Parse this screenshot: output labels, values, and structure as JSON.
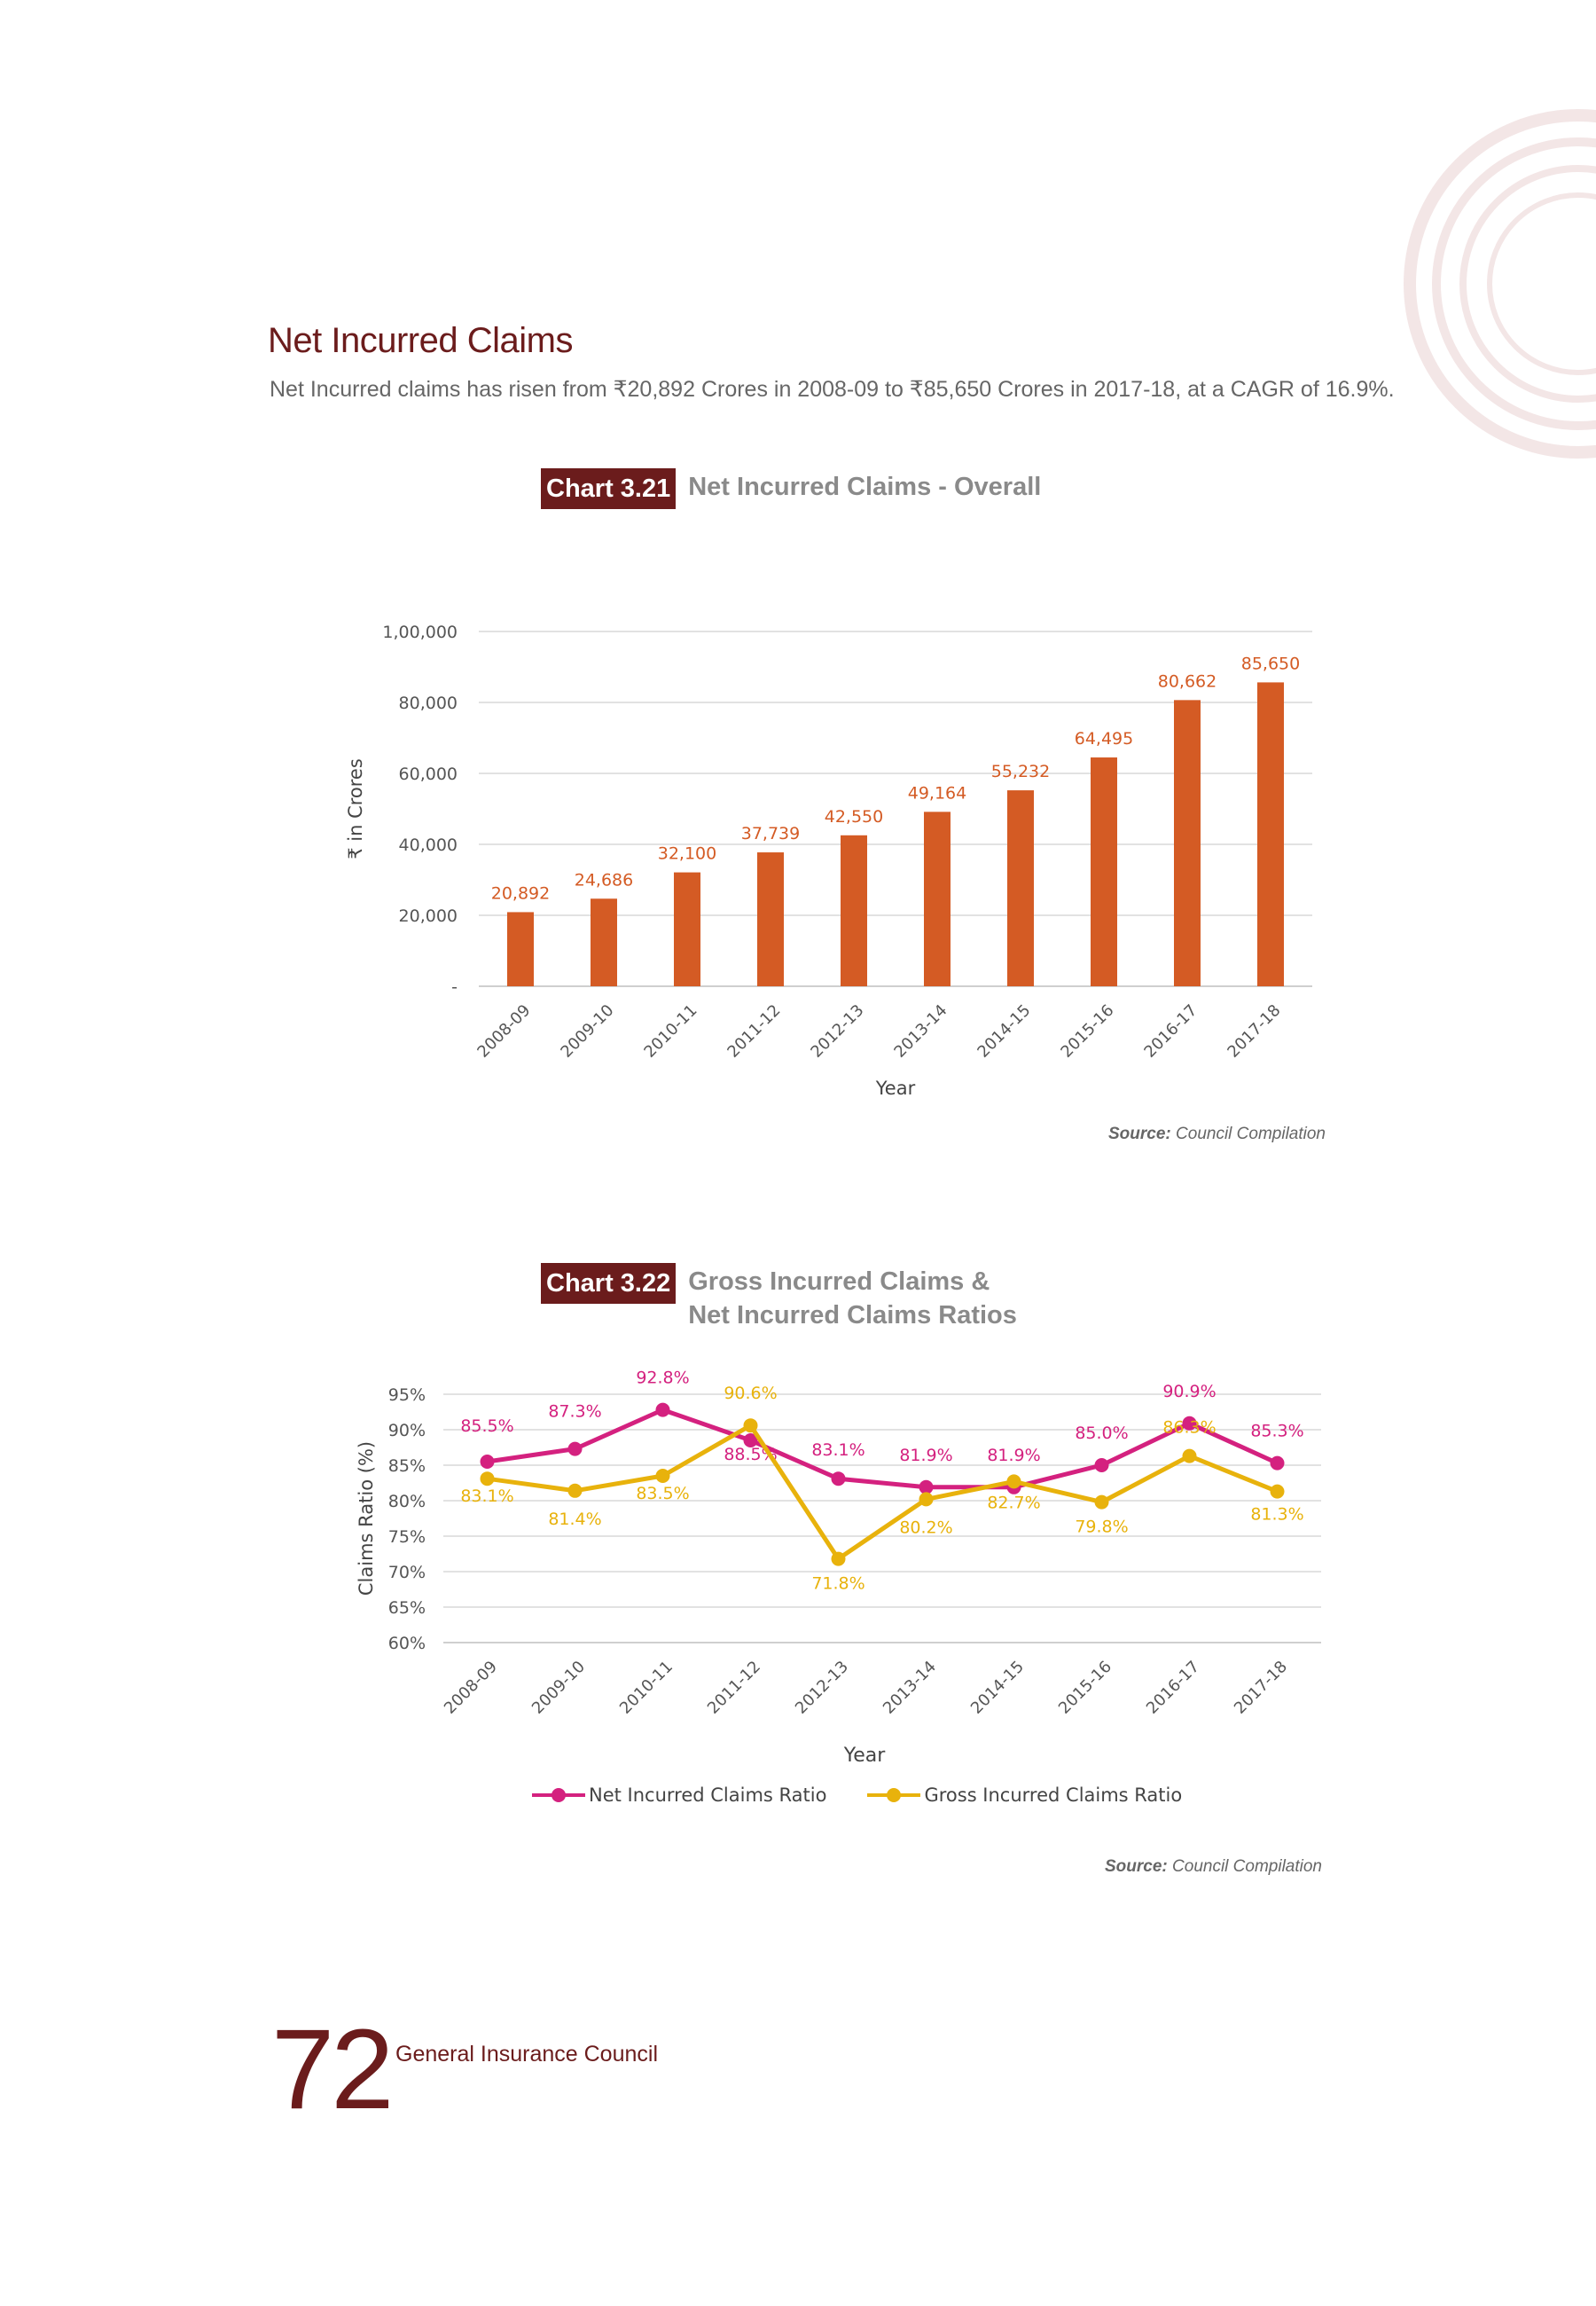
{
  "header": {
    "section_title": "Net Incurred Claims",
    "section_desc": "Net Incurred claims has risen from ₹20,892 Crores in 2008-09 to ₹85,650 Crores in 2017-18, at a CAGR of 16.9%."
  },
  "chart1": {
    "number": "Chart 3.21",
    "title": "Net Incurred Claims - Overall",
    "source_label": "Source:",
    "source_text": " Council Compilation"
  },
  "chart2": {
    "number": "Chart 3.22",
    "title_line1": "Gross Incurred Claims &",
    "title_line2": "Net Incurred Claims Ratios",
    "source_label": "Source:",
    "source_text": " Council Compilation"
  },
  "footer": {
    "page_number": "72",
    "org_name": "General Insurance Council"
  },
  "colors": {
    "brand": "#6b1c1c",
    "bar": "#d45b24",
    "net_line": "#d4217f",
    "gross_line": "#e8b20c"
  },
  "chart_data": [
    {
      "type": "bar",
      "categories": [
        "2008-09",
        "2009-10",
        "2010-11",
        "2011-12",
        "2012-13",
        "2013-14",
        "2014-15",
        "2015-16",
        "2016-17",
        "2017-18"
      ],
      "values": [
        20892,
        24686,
        32100,
        37739,
        42550,
        49164,
        55232,
        64495,
        80662,
        85650
      ],
      "data_labels": [
        "20,892",
        "24,686",
        "32,100",
        "37,739",
        "42,550",
        "49,164",
        "55,232",
        "64,495",
        "80,662",
        "85,650"
      ],
      "yticks": [
        "-",
        "20,000",
        "40,000",
        "60,000",
        "80,000",
        "1,00,000"
      ],
      "ylim": [
        0,
        100000
      ],
      "xlabel": "Year",
      "ylabel": "₹ in Crores",
      "grid": true
    },
    {
      "type": "line",
      "categories": [
        "2008-09",
        "2009-10",
        "2010-11",
        "2011-12",
        "2012-13",
        "2013-14",
        "2014-15",
        "2015-16",
        "2016-17",
        "2017-18"
      ],
      "series": [
        {
          "name": "Net Incurred Claims Ratio",
          "values": [
            85.5,
            87.3,
            92.8,
            88.5,
            83.1,
            81.9,
            81.9,
            85.0,
            90.9,
            85.3
          ],
          "labels": [
            "85.5%",
            "87.3%",
            "92.8%",
            "88.5%",
            "83.1%",
            "81.9%",
            "81.9%",
            "85.0%",
            "90.9%",
            "85.3%"
          ]
        },
        {
          "name": "Gross Incurred Claims Ratio",
          "values": [
            83.1,
            81.4,
            83.5,
            90.6,
            71.8,
            80.2,
            82.7,
            79.8,
            86.3,
            81.3
          ],
          "labels": [
            "83.1%",
            "81.4%",
            "83.5%",
            "90.6%",
            "71.8%",
            "80.2%",
            "82.7%",
            "79.8%",
            "86.3%",
            "81.3%"
          ]
        }
      ],
      "yticks": [
        "60%",
        "65%",
        "70%",
        "75%",
        "80%",
        "85%",
        "90%",
        "95%"
      ],
      "ylim": [
        60,
        95
      ],
      "xlabel": "Year",
      "ylabel": "Claims Ratio (%)",
      "legend": "bottom",
      "grid": true
    }
  ]
}
